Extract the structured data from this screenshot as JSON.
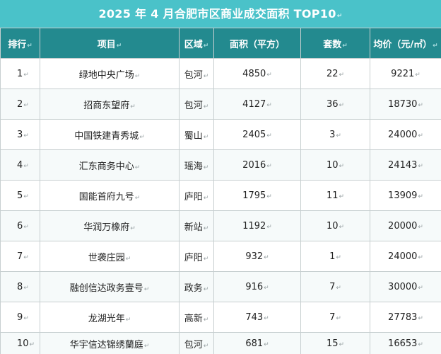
{
  "title": "2025 年 4 月合肥市区商业成交面积 TOP10",
  "headers": {
    "rank": "排行",
    "project": "项目",
    "district": "区域",
    "area": "面积（平方）",
    "units": "套数",
    "price": "均价（元/㎡）"
  },
  "rows": [
    {
      "rank": "1",
      "project": "绿地中央广场",
      "district": "包河",
      "area": "4850",
      "units": "22",
      "price": "9221"
    },
    {
      "rank": "2",
      "project": "招商东望府",
      "district": "包河",
      "area": "4127",
      "units": "36",
      "price": "18730"
    },
    {
      "rank": "3",
      "project": "中国铁建青秀城",
      "district": "蜀山",
      "area": "2405",
      "units": "3",
      "price": "24000"
    },
    {
      "rank": "4",
      "project": "汇东商务中心",
      "district": "瑶海",
      "area": "2016",
      "units": "10",
      "price": "24143"
    },
    {
      "rank": "5",
      "project": "国能首府九号",
      "district": "庐阳",
      "area": "1795",
      "units": "11",
      "price": "13909"
    },
    {
      "rank": "6",
      "project": "华润万橡府",
      "district": "新站",
      "area": "1192",
      "units": "10",
      "price": "20000"
    },
    {
      "rank": "7",
      "project": "世袭庄园",
      "district": "庐阳",
      "area": "932",
      "units": "1",
      "price": "24000"
    },
    {
      "rank": "8",
      "project": "融创信达政务壹号",
      "district": "政务",
      "area": "916",
      "units": "7",
      "price": "30000"
    },
    {
      "rank": "9",
      "project": "龙湖光年",
      "district": "高新",
      "area": "743",
      "units": "7",
      "price": "27783"
    },
    {
      "rank": "10",
      "project": "华宇信达锦绣蘭庭",
      "district": "包河",
      "area": "681",
      "units": "15",
      "price": "16653"
    }
  ]
}
